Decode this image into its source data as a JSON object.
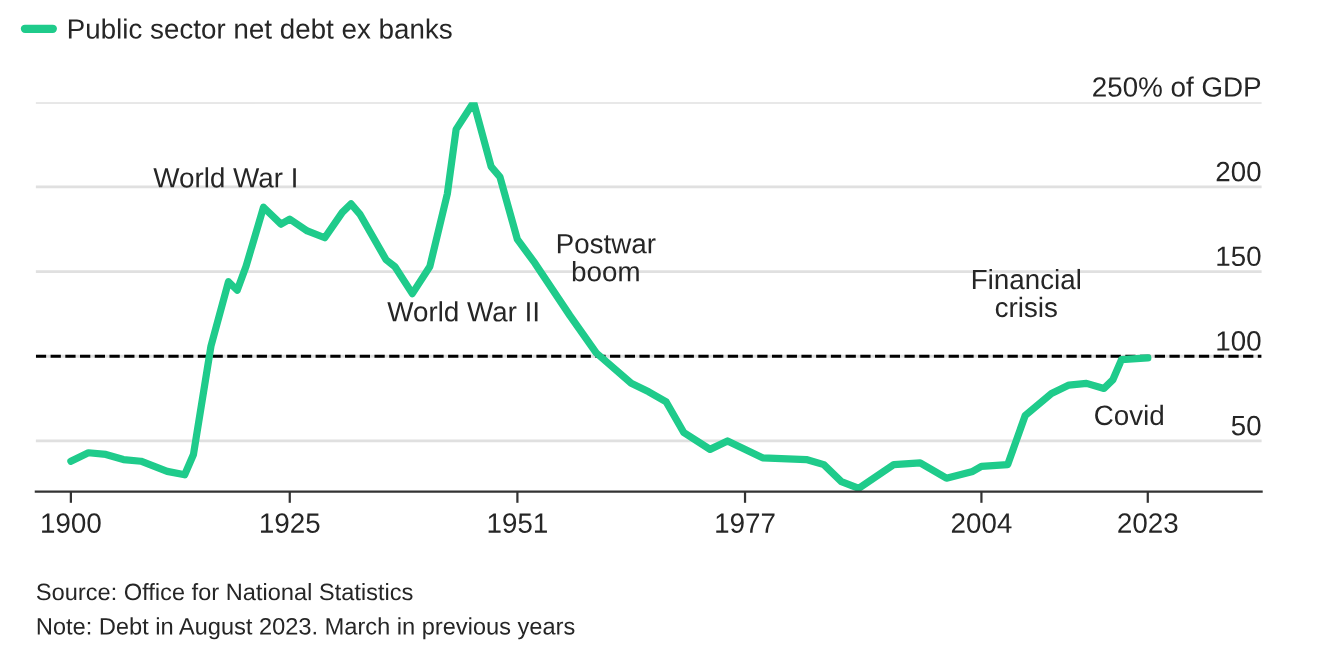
{
  "chart_data": {
    "type": "line",
    "x": [
      1900,
      1902,
      1904,
      1906,
      1908,
      1911,
      1913,
      1914,
      1916,
      1918,
      1919,
      1920,
      1922,
      1924,
      1925,
      1927,
      1929,
      1931,
      1932,
      1933,
      1936,
      1937,
      1939,
      1941,
      1943,
      1944,
      1946,
      1948,
      1949,
      1951,
      1953,
      1957,
      1960,
      1964,
      1966,
      1968,
      1970,
      1973,
      1975,
      1979,
      1984,
      1986,
      1988,
      1990,
      1994,
      1997,
      2000,
      2003,
      2004,
      2007,
      2009,
      2012,
      2014,
      2016,
      2018,
      2019,
      2020,
      2023
    ],
    "series": [
      {
        "name": "Public sector net debt ex banks",
        "color": "#1fcb8b",
        "values": [
          38,
          43,
          42,
          39,
          38,
          32,
          30,
          42,
          106,
          144,
          139,
          153,
          188,
          178,
          181,
          174,
          170,
          185,
          190,
          184,
          157,
          153,
          137,
          153,
          196,
          234,
          250,
          212,
          206,
          169,
          155,
          124,
          102,
          84,
          79,
          73,
          55,
          45,
          50,
          40,
          39,
          36,
          26,
          22,
          36,
          37,
          28,
          32,
          35,
          36,
          65,
          78,
          83,
          84,
          81,
          86,
          98,
          99
        ]
      }
    ],
    "xlim": [
      1896,
      2036
    ],
    "ylim": [
      20,
      250
    ],
    "xticks": [
      1900,
      1925,
      1951,
      1977,
      2004,
      2023
    ],
    "yticks": [
      50,
      100,
      150,
      200,
      {
        "value": 250,
        "label": "250% of GDP"
      }
    ],
    "grid": "y",
    "legend": "top left",
    "line_style": "solid",
    "marker": "none",
    "ref_lines": [
      {
        "axis": "y",
        "value": 100,
        "label": null,
        "color": "#000000",
        "line_style": "dashed"
      }
    ],
    "annotations": [
      "World War I",
      "World War II",
      "Postwar\nboom",
      "Financial\ncrisis",
      "Covid",
      "Source: Office for National Statistics",
      "Note: Debt in August 2023. March in previous years"
    ]
  }
}
